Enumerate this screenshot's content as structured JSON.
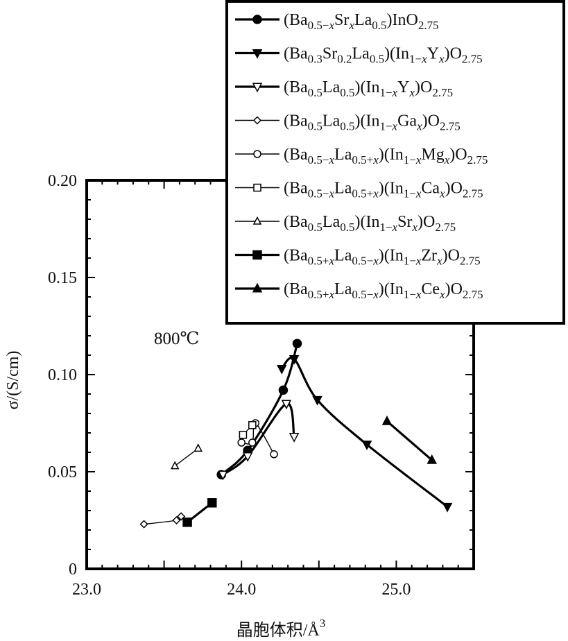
{
  "chart_data": {
    "type": "line",
    "xlabel": "晶胞体积/Å",
    "xlabel_sup": "3",
    "ylabel": "σ/(S/cm)",
    "xlim": [
      23.0,
      25.5
    ],
    "ylim": [
      0,
      0.2
    ],
    "xticks": [
      "23.0",
      "24.0",
      "25.0"
    ],
    "yticks": [
      "0",
      "0.05",
      "0.10",
      "0.15",
      "0.20"
    ],
    "annotation": "800℃",
    "grid": false,
    "legend_position": "top-right",
    "series": [
      {
        "name": "(Ba0.5−xSrxLa0.5)InO2.75",
        "legend": [
          [
            "(Ba",
            ""
          ],
          [
            "0.5−",
            "s"
          ],
          [
            "x",
            "si"
          ],
          [
            "Sr",
            ""
          ],
          [
            "x",
            "si"
          ],
          [
            "La",
            ""
          ],
          [
            "0.5",
            "s"
          ],
          [
            ")InO",
            ""
          ],
          [
            "2.75",
            "s"
          ]
        ],
        "marker": "circle",
        "fill": "black",
        "weight": "heavy",
        "x": [
          23.87,
          24.04,
          24.27,
          24.36
        ],
        "y": [
          0.0485,
          0.061,
          0.092,
          0.116
        ]
      },
      {
        "name": "(Ba0.3Sr0.2La0.5)(In1−xYx)O2.75",
        "legend": [
          [
            "(Ba",
            ""
          ],
          [
            "0.3",
            "s"
          ],
          [
            "Sr",
            ""
          ],
          [
            "0.2",
            "s"
          ],
          [
            "La",
            ""
          ],
          [
            "0.5",
            "s"
          ],
          [
            ")(In",
            ""
          ],
          [
            "1−",
            "s"
          ],
          [
            "x",
            "si"
          ],
          [
            "Y",
            ""
          ],
          [
            "x",
            "si"
          ],
          [
            ")O",
            ""
          ],
          [
            "2.75",
            "s"
          ]
        ],
        "marker": "tri-down",
        "fill": "black",
        "weight": "heavy",
        "x": [
          24.26,
          24.34,
          24.49,
          24.81,
          25.33
        ],
        "y": [
          0.103,
          0.108,
          0.087,
          0.064,
          0.032
        ]
      },
      {
        "name": "(Ba0.5La0.5)(In1−xYx)O2.75",
        "legend": [
          [
            "(Ba",
            ""
          ],
          [
            "0.5",
            "s"
          ],
          [
            "La",
            ""
          ],
          [
            "0.5",
            "s"
          ],
          [
            ")(In",
            ""
          ],
          [
            "1−",
            "s"
          ],
          [
            "x",
            "si"
          ],
          [
            "Y",
            ""
          ],
          [
            "x",
            "si"
          ],
          [
            ")O",
            ""
          ],
          [
            "2.75",
            "s"
          ]
        ],
        "marker": "tri-down",
        "fill": "white",
        "weight": "heavy",
        "x": [
          23.88,
          24.04,
          24.29,
          24.34
        ],
        "y": [
          0.0485,
          0.058,
          0.085,
          0.068
        ]
      },
      {
        "name": "(Ba0.5La0.5)(In1−xGax)O2.75",
        "legend": [
          [
            "(Ba",
            ""
          ],
          [
            "0.5",
            "s"
          ],
          [
            "La",
            ""
          ],
          [
            "0.5",
            "s"
          ],
          [
            ")(In",
            ""
          ],
          [
            "1−",
            "s"
          ],
          [
            "x",
            "si"
          ],
          [
            "Ga",
            ""
          ],
          [
            "x",
            "si"
          ],
          [
            ")O",
            ""
          ],
          [
            "2.75",
            "s"
          ]
        ],
        "marker": "diamond",
        "fill": "white",
        "weight": "light",
        "x": [
          23.37,
          23.58,
          23.61
        ],
        "y": [
          0.023,
          0.025,
          0.027
        ]
      },
      {
        "name": "(Ba0.5−xLa0.5+x)(In1−xMgx)O2.75",
        "legend": [
          [
            "(Ba",
            ""
          ],
          [
            "0.5−",
            "s"
          ],
          [
            "x",
            "si"
          ],
          [
            "La",
            ""
          ],
          [
            "0.5+",
            "s"
          ],
          [
            "x",
            "si"
          ],
          [
            ")(In",
            ""
          ],
          [
            "1−",
            "s"
          ],
          [
            "x",
            "si"
          ],
          [
            "Mg",
            ""
          ],
          [
            "x",
            "si"
          ],
          [
            ")O",
            ""
          ],
          [
            "2.75",
            "s"
          ]
        ],
        "marker": "circle",
        "fill": "white",
        "weight": "light",
        "x": [
          24.0,
          24.07,
          24.09,
          24.21
        ],
        "y": [
          0.065,
          0.065,
          0.075,
          0.059
        ]
      },
      {
        "name": "(Ba0.5−xLa0.5+x)(In1−xCax)O2.75",
        "legend": [
          [
            "(Ba",
            ""
          ],
          [
            "0.5−",
            "s"
          ],
          [
            "x",
            "si"
          ],
          [
            "La",
            ""
          ],
          [
            "0.5+",
            "s"
          ],
          [
            "x",
            "si"
          ],
          [
            ")(In",
            ""
          ],
          [
            "1−",
            "s"
          ],
          [
            "x",
            "si"
          ],
          [
            "Ca",
            ""
          ],
          [
            "x",
            "si"
          ],
          [
            ")O",
            ""
          ],
          [
            "2.75",
            "s"
          ]
        ],
        "marker": "square",
        "fill": "white",
        "weight": "light",
        "x": [
          24.01,
          24.07
        ],
        "y": [
          0.069,
          0.074
        ]
      },
      {
        "name": "(Ba0.5La0.5)(In1−xSrx)O2.75",
        "legend": [
          [
            "(Ba",
            ""
          ],
          [
            "0.5",
            "s"
          ],
          [
            "La",
            ""
          ],
          [
            "0.5",
            "s"
          ],
          [
            ")(In",
            ""
          ],
          [
            "1−",
            "s"
          ],
          [
            "x",
            "si"
          ],
          [
            "Sr",
            ""
          ],
          [
            "x",
            "si"
          ],
          [
            ")O",
            ""
          ],
          [
            "2.75",
            "s"
          ]
        ],
        "marker": "triangle",
        "fill": "white",
        "weight": "light",
        "x": [
          23.57,
          23.72
        ],
        "y": [
          0.053,
          0.062
        ]
      },
      {
        "name": "(Ba0.5+xLa0.5−x)(In1−xZrx)O2.75",
        "legend": [
          [
            "(Ba",
            ""
          ],
          [
            "0.5+",
            "s"
          ],
          [
            "x",
            "si"
          ],
          [
            "La",
            ""
          ],
          [
            "0.5−",
            "s"
          ],
          [
            "x",
            "si"
          ],
          [
            ")(In",
            ""
          ],
          [
            "1−",
            "s"
          ],
          [
            "x",
            "si"
          ],
          [
            "Zr",
            ""
          ],
          [
            "x",
            "si"
          ],
          [
            ")O",
            ""
          ],
          [
            "2.75",
            "s"
          ]
        ],
        "marker": "square",
        "fill": "black",
        "weight": "heavy",
        "x": [
          23.65,
          23.81
        ],
        "y": [
          0.024,
          0.034
        ]
      },
      {
        "name": "(Ba0.5+xLa0.5−x)(In1−xCex)O2.75",
        "legend": [
          [
            "(Ba",
            ""
          ],
          [
            "0.5+",
            "s"
          ],
          [
            "x",
            "si"
          ],
          [
            "La",
            ""
          ],
          [
            "0.5−",
            "s"
          ],
          [
            "x",
            "si"
          ],
          [
            ")(In",
            ""
          ],
          [
            "1−",
            "s"
          ],
          [
            "x",
            "si"
          ],
          [
            "Ce",
            ""
          ],
          [
            "x",
            "si"
          ],
          [
            ")O",
            ""
          ],
          [
            "2.75",
            "s"
          ]
        ],
        "marker": "triangle",
        "fill": "black",
        "weight": "heavy",
        "x": [
          24.94,
          25.23
        ],
        "y": [
          0.076,
          0.056
        ]
      }
    ]
  }
}
